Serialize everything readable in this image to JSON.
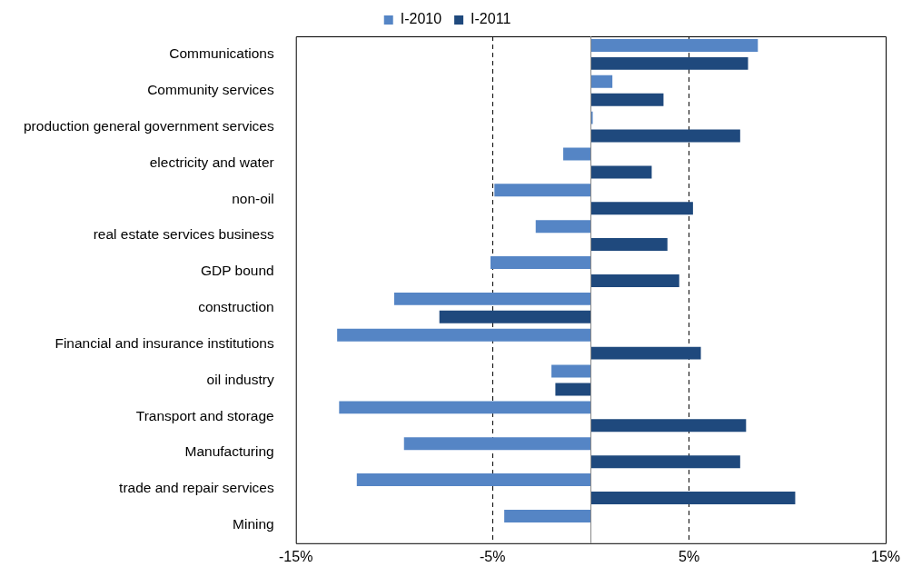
{
  "chart_data": {
    "type": "bar",
    "orientation": "horizontal",
    "categories": [
      "Communications",
      "Community services",
      "production general government services",
      "electricity and water",
      "non-oil",
      "real estate services business",
      "GDP bound",
      "construction",
      "Financial and insurance institutions",
      "oil industry",
      "Transport and storage",
      "Manufacturing",
      "trade and repair services",
      "Mining"
    ],
    "series": [
      {
        "name": "I-2010",
        "color": "#5585c5",
        "values": [
          8.5,
          1.1,
          0.1,
          -1.4,
          -4.9,
          -2.8,
          -5.1,
          -10.0,
          -12.9,
          -2.0,
          -12.8,
          -9.5,
          -11.9,
          -4.4
        ]
      },
      {
        "name": "I-2011",
        "color": "#1f497d",
        "values": [
          8.0,
          3.7,
          7.6,
          3.1,
          5.2,
          3.9,
          4.5,
          -7.7,
          5.6,
          -1.8,
          7.9,
          7.6,
          10.4,
          null
        ]
      }
    ],
    "xlim": [
      -15,
      15
    ],
    "xticks": [
      {
        "value": -15,
        "label": "-15%"
      },
      {
        "value": -5,
        "label": "-5%"
      },
      {
        "value": 5,
        "label": "5%"
      },
      {
        "value": 15,
        "label": "15%"
      }
    ],
    "grid": "x",
    "line_style": "dashed",
    "legend": "top"
  }
}
